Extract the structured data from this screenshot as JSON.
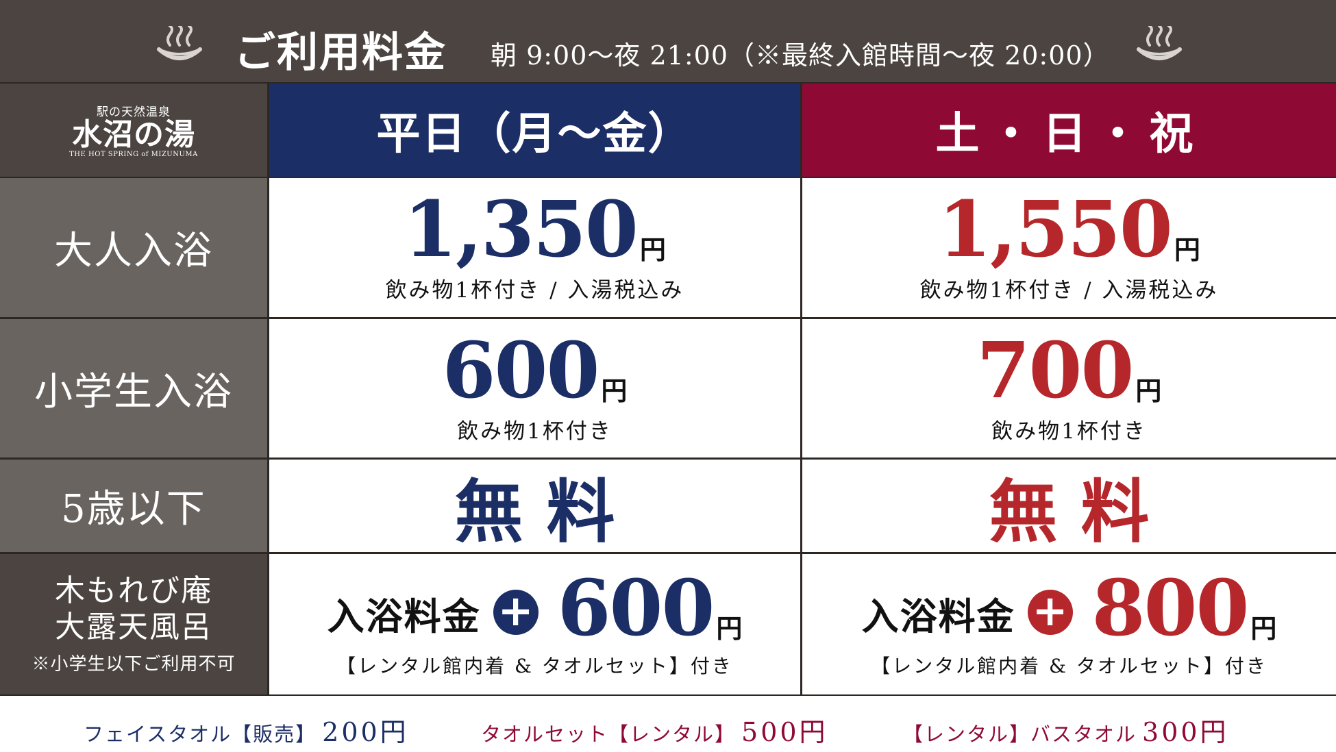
{
  "header": {
    "title": "ご利用料金",
    "hours": "朝 9:00〜夜 21:00（※最終入館時間〜夜 20:00）"
  },
  "logo": {
    "small": "駅の天然温泉",
    "name": "水沼の湯",
    "english": "THE HOT SPRING of MIZUNUMA"
  },
  "columns": {
    "weekday": "平日（月〜金）",
    "weekend": "土・日・祝"
  },
  "rows": {
    "adult": {
      "label": "大人入浴",
      "weekday_price": "1,350",
      "weekend_price": "1,550",
      "yen": "円",
      "note": "飲み物1杯付き / 入湯税込み"
    },
    "child": {
      "label": "小学生入浴",
      "weekday_price": "600",
      "weekend_price": "700",
      "yen": "円",
      "note": "飲み物1杯付き"
    },
    "infant": {
      "label": "5歳以下",
      "free": "無料"
    },
    "rotenburo": {
      "label_line1": "木もれび庵",
      "label_line2": "大露天風呂",
      "label_note": "※小学生以下ご利用不可",
      "prefix": "入浴料金",
      "weekday_price": "600",
      "weekend_price": "800",
      "yen": "円",
      "note": "【レンタル館内着 & タオルセット】付き"
    }
  },
  "footer": {
    "face_towel_label": "フェイスタオル【販売】",
    "face_towel_price": "200円",
    "towel_set_label": "タオルセット【レンタル】",
    "towel_set_price": "500円",
    "bath_towel_label": "【レンタル】バスタオル",
    "bath_towel_price": "300円"
  },
  "colors": {
    "navy": "#1c2e66",
    "crimson": "#8e0a35",
    "red": "#b5272b",
    "gray": "#6a6461",
    "dark": "#4b4440"
  },
  "icons": {
    "header_left": "hot-spring-icon",
    "header_right": "hot-spring-icon",
    "plus": "plus-circle-icon"
  }
}
